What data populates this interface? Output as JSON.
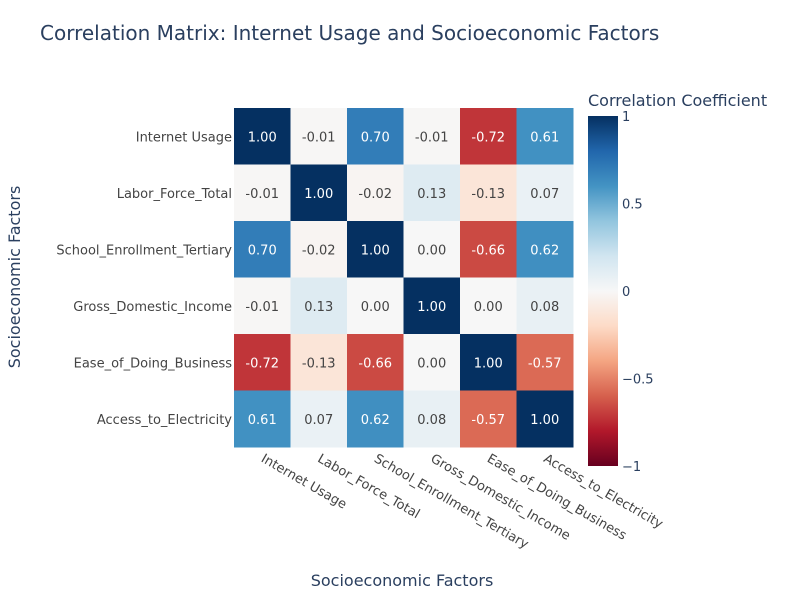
{
  "chart_data": {
    "type": "heatmap",
    "title": "Correlation Matrix: Internet Usage and Socioeconomic Factors",
    "xlabel": "Socioeconomic Factors",
    "ylabel": "Socioeconomic Factors",
    "colorbar_title": "Correlation Coefficient",
    "categories": [
      "Internet Usage",
      "Labor_Force_Total",
      "School_Enrollment_Tertiary",
      "Gross_Domestic_Income",
      "Ease_of_Doing_Business",
      "Access_to_Electricity"
    ],
    "values": [
      [
        1.0,
        -0.01,
        0.7,
        -0.01,
        -0.72,
        0.61
      ],
      [
        -0.01,
        1.0,
        -0.02,
        0.13,
        -0.13,
        0.07
      ],
      [
        0.7,
        -0.02,
        1.0,
        0.0,
        -0.66,
        0.62
      ],
      [
        -0.01,
        0.13,
        0.0,
        1.0,
        0.0,
        0.08
      ],
      [
        -0.72,
        -0.13,
        -0.66,
        0.0,
        1.0,
        -0.57
      ],
      [
        0.61,
        0.07,
        0.62,
        0.08,
        -0.57,
        1.0
      ]
    ],
    "zlim": [
      -1,
      1
    ],
    "colorbar_ticks": [
      1,
      0.5,
      0,
      -0.5,
      -1
    ],
    "colorbar_tick_labels": [
      "1",
      "0.5",
      "0",
      "−0.5",
      "−1"
    ],
    "colorscale": "RdBu",
    "x_tick_angle": 30
  }
}
